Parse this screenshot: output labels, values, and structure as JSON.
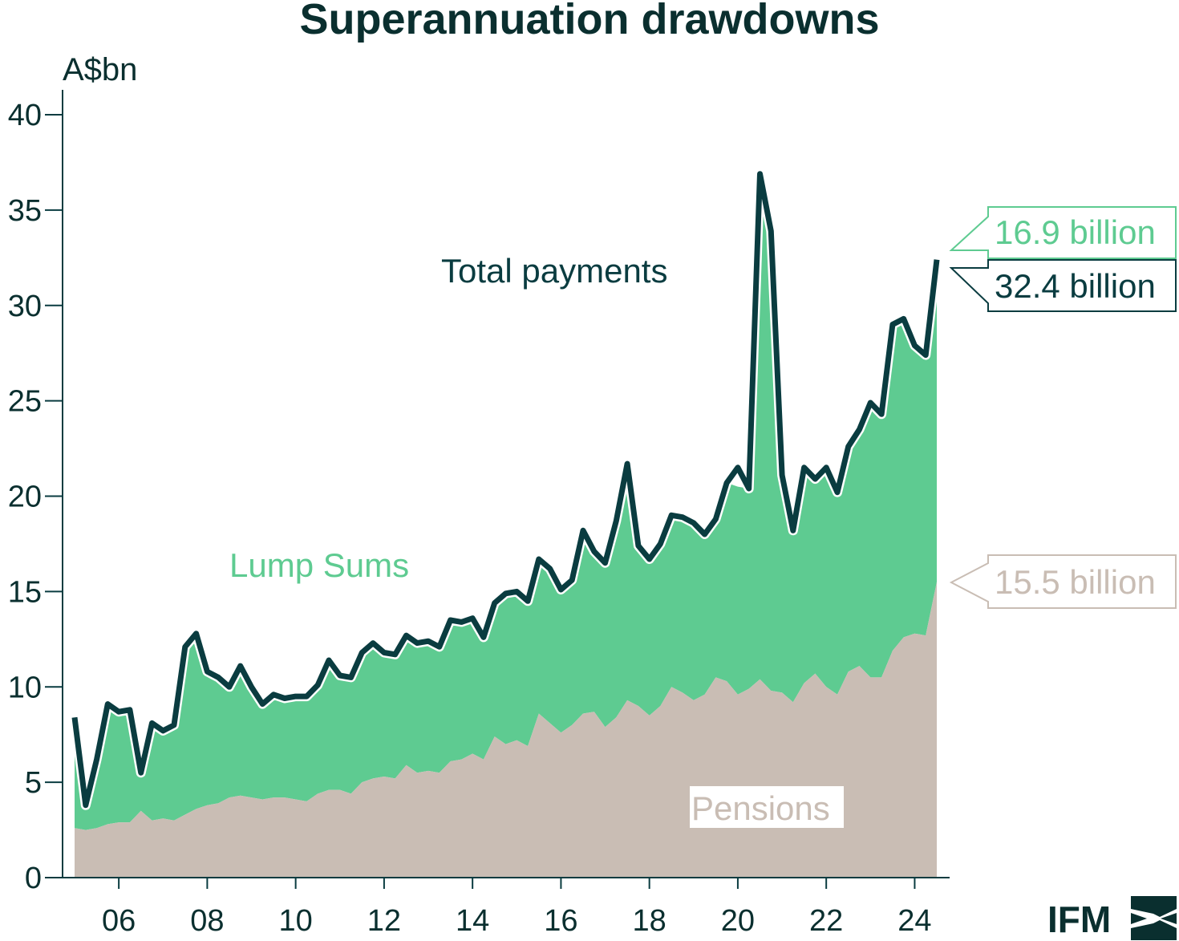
{
  "chart_data": {
    "type": "area",
    "title": "Superannuation drawdowns",
    "ylabel": "A$bn",
    "xlabel": "",
    "ylim": [
      0,
      40
    ],
    "yticks": [
      0,
      5,
      10,
      15,
      20,
      25,
      30,
      35,
      40
    ],
    "xlim": [
      2005.0,
      2024.9
    ],
    "xticks": [
      {
        "value": 2006,
        "label": "06"
      },
      {
        "value": 2008,
        "label": "08"
      },
      {
        "value": 2010,
        "label": "10"
      },
      {
        "value": 2012,
        "label": "12"
      },
      {
        "value": 2014,
        "label": "14"
      },
      {
        "value": 2016,
        "label": "16"
      },
      {
        "value": 2018,
        "label": "18"
      },
      {
        "value": 2020,
        "label": "20"
      },
      {
        "value": 2022,
        "label": "22"
      },
      {
        "value": 2024,
        "label": "24"
      }
    ],
    "x": [
      2005.0,
      2005.25,
      2005.5,
      2005.75,
      2006.0,
      2006.25,
      2006.5,
      2006.75,
      2007.0,
      2007.25,
      2007.5,
      2007.75,
      2008.0,
      2008.25,
      2008.5,
      2008.75,
      2009.0,
      2009.25,
      2009.5,
      2009.75,
      2010.0,
      2010.25,
      2010.5,
      2010.75,
      2011.0,
      2011.25,
      2011.5,
      2011.75,
      2012.0,
      2012.25,
      2012.5,
      2012.75,
      2013.0,
      2013.25,
      2013.5,
      2013.75,
      2014.0,
      2014.25,
      2014.5,
      2014.75,
      2015.0,
      2015.25,
      2015.5,
      2015.75,
      2016.0,
      2016.25,
      2016.5,
      2016.75,
      2017.0,
      2017.25,
      2017.5,
      2017.75,
      2018.0,
      2018.25,
      2018.5,
      2018.75,
      2019.0,
      2019.25,
      2019.5,
      2019.75,
      2020.0,
      2020.25,
      2020.5,
      2020.75,
      2021.0,
      2021.25,
      2021.5,
      2021.75,
      2022.0,
      2022.25,
      2022.5,
      2022.75,
      2023.0,
      2023.25,
      2023.5,
      2023.75,
      2024.0,
      2024.25,
      2024.5
    ],
    "series": [
      {
        "name": "Pensions",
        "color": "#c9bdb4",
        "values": [
          2.6,
          2.5,
          2.6,
          2.8,
          2.9,
          2.9,
          3.5,
          3.0,
          3.1,
          3.0,
          3.3,
          3.6,
          3.8,
          3.9,
          4.2,
          4.3,
          4.2,
          4.1,
          4.2,
          4.2,
          4.1,
          4.0,
          4.4,
          4.6,
          4.6,
          4.4,
          5.0,
          5.2,
          5.3,
          5.2,
          5.9,
          5.5,
          5.6,
          5.5,
          6.1,
          6.2,
          6.5,
          6.2,
          7.4,
          7.0,
          7.2,
          6.9,
          8.6,
          8.1,
          7.6,
          8.0,
          8.6,
          8.7,
          7.9,
          8.4,
          9.3,
          9.0,
          8.5,
          9.0,
          10.0,
          9.7,
          9.3,
          9.6,
          10.5,
          10.3,
          9.6,
          9.9,
          10.4,
          9.8,
          9.7,
          9.2,
          10.2,
          10.7,
          10.0,
          9.6,
          10.8,
          11.1,
          10.5,
          10.5,
          11.9,
          12.6,
          12.8,
          12.7,
          15.5
        ]
      },
      {
        "name": "Lump Sums",
        "color": "#5ecb91",
        "values": [
          5.8,
          1.3,
          3.6,
          6.3,
          5.8,
          5.9,
          2.0,
          5.1,
          4.6,
          5.0,
          8.8,
          9.2,
          7.0,
          6.6,
          5.8,
          6.8,
          5.8,
          5.0,
          5.4,
          5.2,
          5.4,
          5.5,
          5.7,
          6.8,
          6.0,
          6.1,
          6.8,
          7.1,
          6.5,
          6.5,
          6.8,
          6.8,
          6.8,
          6.6,
          7.4,
          7.2,
          7.1,
          6.4,
          7.0,
          7.9,
          7.8,
          7.6,
          8.1,
          8.1,
          7.5,
          7.6,
          9.6,
          8.4,
          8.6,
          10.3,
          12.4,
          8.4,
          8.2,
          8.5,
          9.0,
          9.2,
          9.3,
          8.4,
          8.3,
          10.4,
          10.9,
          10.5,
          26.5,
          24.1,
          11.4,
          9.0,
          11.3,
          10.2,
          11.5,
          10.6,
          11.8,
          12.4,
          14.4,
          13.8,
          17.1,
          16.7,
          15.1,
          14.7,
          16.9
        ]
      },
      {
        "name": "Total payments",
        "color": "#0a3c40",
        "values": [
          8.4,
          3.8,
          6.2,
          9.1,
          8.7,
          8.8,
          5.5,
          8.1,
          7.7,
          8.0,
          12.1,
          12.8,
          10.8,
          10.5,
          10.0,
          11.1,
          10.0,
          9.1,
          9.6,
          9.4,
          9.5,
          9.5,
          10.1,
          11.4,
          10.6,
          10.5,
          11.8,
          12.3,
          11.8,
          11.7,
          12.7,
          12.3,
          12.4,
          12.1,
          13.5,
          13.4,
          13.6,
          12.6,
          14.4,
          14.9,
          15.0,
          14.5,
          16.7,
          16.2,
          15.1,
          15.6,
          18.2,
          17.1,
          16.5,
          18.7,
          21.7,
          17.4,
          16.7,
          17.5,
          19.0,
          18.9,
          18.6,
          18.0,
          18.8,
          20.7,
          21.5,
          20.4,
          36.9,
          33.9,
          21.1,
          18.2,
          21.5,
          20.9,
          21.5,
          20.2,
          22.6,
          23.5,
          24.9,
          24.3,
          29.0,
          29.3,
          27.9,
          27.4,
          32.4
        ]
      }
    ],
    "annotations": {
      "series_labels": [
        {
          "text": "Total payments",
          "color": "#0a3c40"
        },
        {
          "text": "Lump Sums",
          "color": "#5ecb91"
        },
        {
          "text": "Pensions",
          "color": "#c9bdb4"
        }
      ],
      "callouts": [
        {
          "text": "16.9 billion",
          "series": "Lump Sums",
          "color": "#5ecb91"
        },
        {
          "text": "32.4 billion",
          "series": "Total payments",
          "color": "#0a3c40"
        },
        {
          "text": "15.5 billion",
          "series": "Pensions",
          "color": "#c9bdb4"
        }
      ]
    }
  },
  "logo": {
    "text": "IFM"
  }
}
